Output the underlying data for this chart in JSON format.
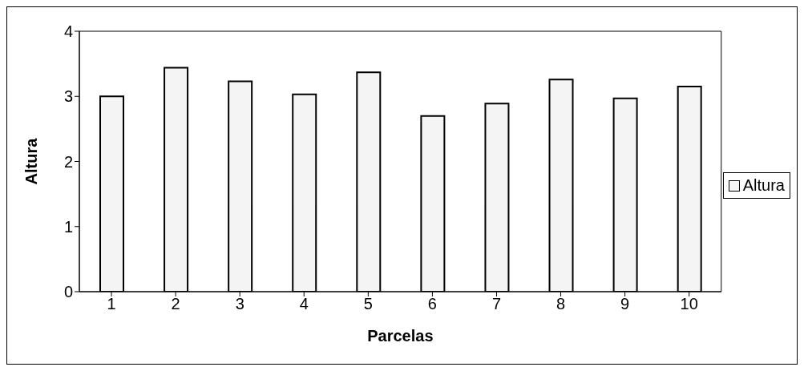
{
  "chart_data": {
    "type": "bar",
    "xlabel": "Parcelas",
    "ylabel": "Altura",
    "categories": [
      "1",
      "2",
      "3",
      "4",
      "5",
      "6",
      "7",
      "8",
      "9",
      "10"
    ],
    "series": [
      {
        "name": "Altura",
        "color": "#f4f4f4",
        "values": [
          3.0,
          3.44,
          3.23,
          3.03,
          3.37,
          2.7,
          2.89,
          3.26,
          2.97,
          3.15
        ]
      }
    ],
    "ylim": [
      0,
      4
    ],
    "yticks": [
      0,
      1,
      2,
      3,
      4
    ],
    "grid": false,
    "legend": "right"
  }
}
